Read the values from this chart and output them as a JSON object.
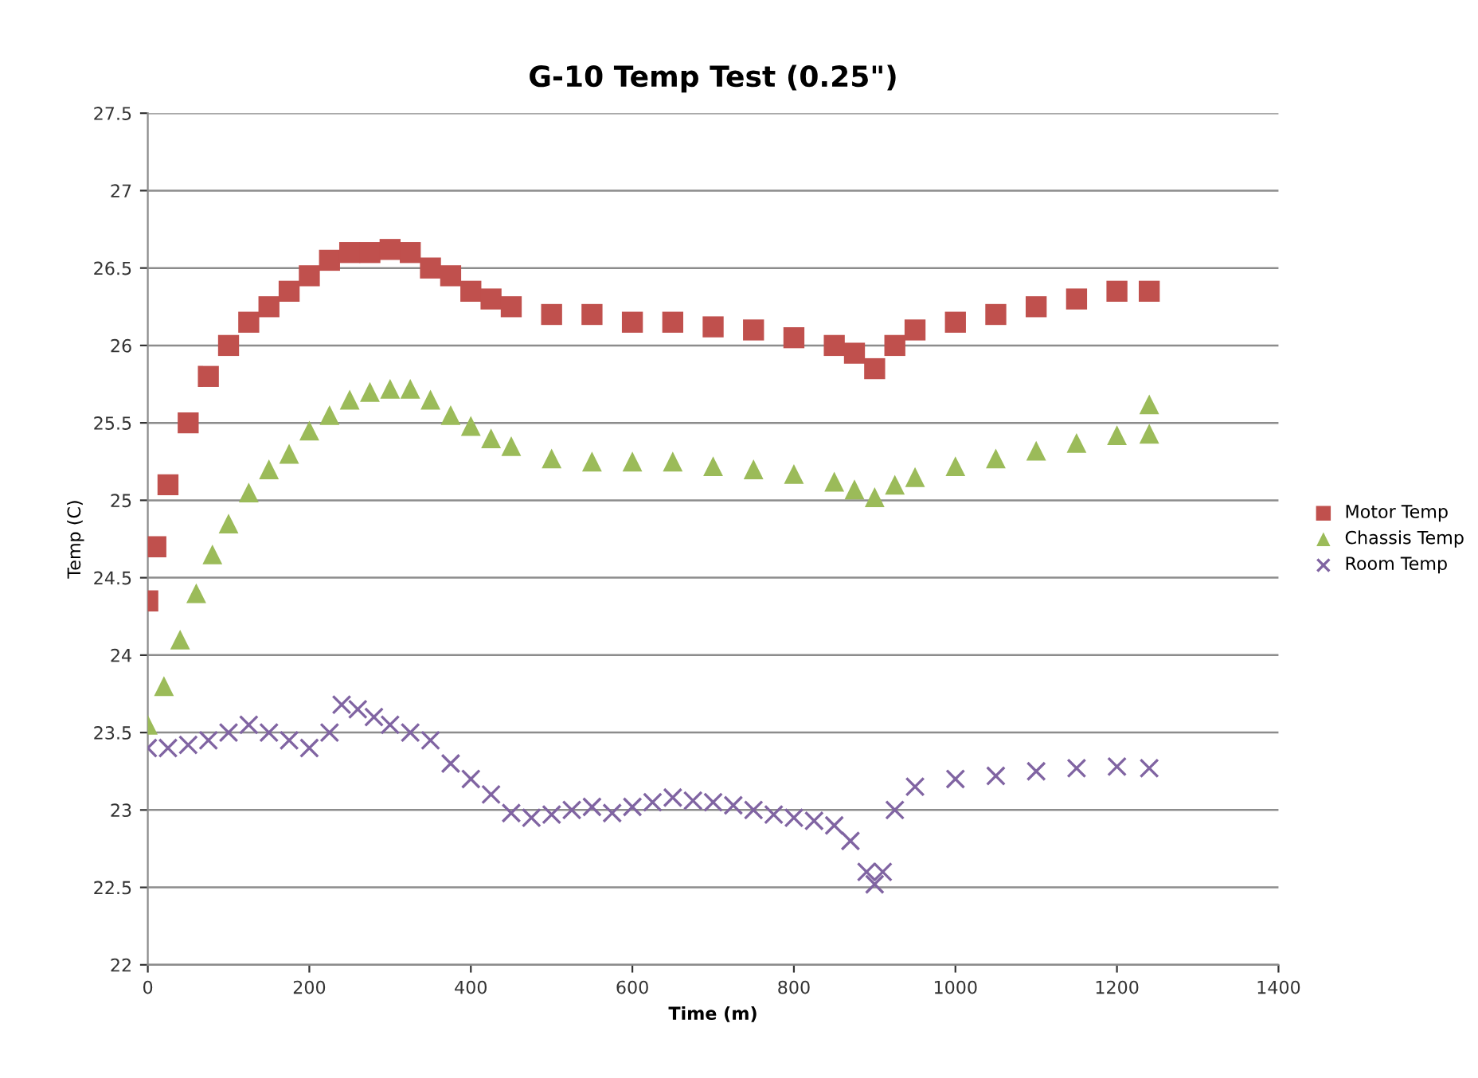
{
  "chart_data": {
    "type": "scatter",
    "title": "G-10 Temp Test (0.25\")",
    "xlabel": "Time (m)",
    "ylabel": "Temp (C)",
    "xlim": [
      0,
      1400
    ],
    "xticks": [
      0,
      200,
      400,
      600,
      800,
      1000,
      1200,
      1400
    ],
    "ylim": [
      22,
      27.5
    ],
    "yticks": [
      22,
      22.5,
      23,
      23.5,
      24,
      24.5,
      25,
      25.5,
      26,
      26.5,
      27,
      27.5
    ],
    "grid": "y",
    "legend": "right",
    "series": [
      {
        "name": "Motor Temp",
        "color": "#c0504d",
        "marker": "square",
        "x": [
          0,
          10,
          25,
          50,
          75,
          100,
          125,
          150,
          175,
          200,
          225,
          250,
          275,
          300,
          325,
          350,
          375,
          400,
          425,
          450,
          500,
          550,
          600,
          650,
          700,
          750,
          800,
          850,
          875,
          900,
          925,
          950,
          1000,
          1050,
          1100,
          1150,
          1200,
          1240
        ],
        "values": [
          24.35,
          24.7,
          25.1,
          25.5,
          25.8,
          26.0,
          26.15,
          26.25,
          26.35,
          26.45,
          26.55,
          26.6,
          26.6,
          26.62,
          26.6,
          26.5,
          26.45,
          26.35,
          26.3,
          26.25,
          26.2,
          26.2,
          26.15,
          26.15,
          26.12,
          26.1,
          26.05,
          26.0,
          25.95,
          25.85,
          26.0,
          26.1,
          26.15,
          26.2,
          26.25,
          26.3,
          26.35,
          26.35
        ]
      },
      {
        "name": "Chassis Temp",
        "color": "#9bbb59",
        "marker": "triangle",
        "x": [
          0,
          20,
          40,
          60,
          80,
          100,
          125,
          150,
          175,
          200,
          225,
          250,
          275,
          300,
          325,
          350,
          375,
          400,
          425,
          450,
          500,
          550,
          600,
          650,
          700,
          750,
          800,
          850,
          875,
          900,
          925,
          950,
          1000,
          1050,
          1100,
          1150,
          1200,
          1240,
          1240
        ],
        "values": [
          23.55,
          23.8,
          24.1,
          24.4,
          24.65,
          24.85,
          25.05,
          25.2,
          25.3,
          25.45,
          25.55,
          25.65,
          25.7,
          25.72,
          25.72,
          25.65,
          25.55,
          25.48,
          25.4,
          25.35,
          25.27,
          25.25,
          25.25,
          25.25,
          25.22,
          25.2,
          25.17,
          25.12,
          25.07,
          25.02,
          25.1,
          25.15,
          25.22,
          25.27,
          25.32,
          25.37,
          25.42,
          25.43,
          25.62
        ]
      },
      {
        "name": "Room Temp",
        "color": "#8064a2",
        "marker": "cross",
        "x": [
          0,
          25,
          50,
          75,
          100,
          125,
          150,
          175,
          200,
          225,
          240,
          260,
          280,
          300,
          325,
          350,
          375,
          400,
          425,
          450,
          475,
          500,
          525,
          550,
          575,
          600,
          625,
          650,
          675,
          700,
          725,
          750,
          775,
          800,
          825,
          850,
          870,
          890,
          900,
          910,
          925,
          950,
          1000,
          1050,
          1100,
          1150,
          1200,
          1240
        ],
        "values": [
          23.4,
          23.4,
          23.42,
          23.45,
          23.5,
          23.55,
          23.5,
          23.45,
          23.4,
          23.5,
          23.68,
          23.65,
          23.6,
          23.55,
          23.5,
          23.45,
          23.3,
          23.2,
          23.1,
          22.98,
          22.95,
          22.97,
          23.0,
          23.02,
          22.98,
          23.02,
          23.05,
          23.08,
          23.06,
          23.05,
          23.03,
          23.0,
          22.97,
          22.95,
          22.93,
          22.9,
          22.8,
          22.6,
          22.52,
          22.6,
          23.0,
          23.15,
          23.2,
          23.22,
          23.25,
          23.27,
          23.28,
          23.27
        ]
      }
    ]
  }
}
